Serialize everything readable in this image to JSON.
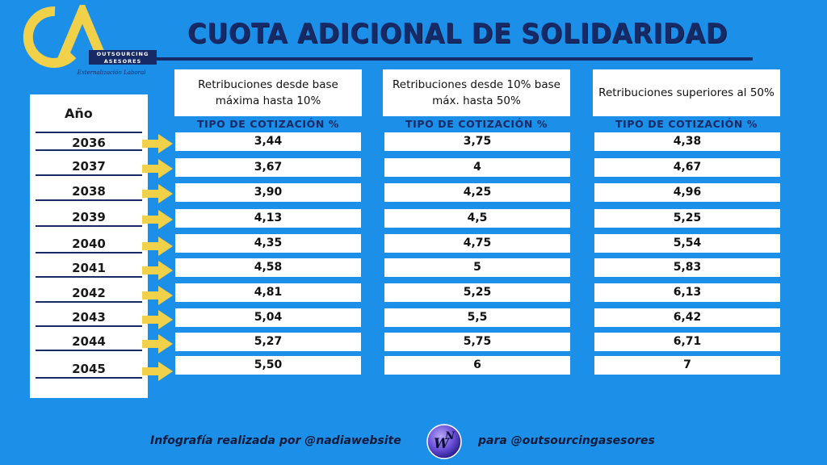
{
  "logo": {
    "band_line1": "OUTSOURCING",
    "band_line2": "ASESORES",
    "subtitle": "Externalización Laboral",
    "colors": {
      "gold": "#f2d14a",
      "navy": "#172a66"
    }
  },
  "title": "CUOTA ADICIONAL DE SOLIDARIDAD",
  "year_header": "Año",
  "years": [
    "2036",
    "2037",
    "2038",
    "2039",
    "2040",
    "2041",
    "2042",
    "2043",
    "2044",
    "2045"
  ],
  "columns": [
    {
      "header": "Retribuciones desde base máxima hasta 10%",
      "subheader": "TIPO DE COTIZACIÓN %",
      "values": [
        "3,44",
        "3,67",
        "3,90",
        "4,13",
        "4,35",
        "4,58",
        "4,81",
        "5,04",
        "5,27",
        "5,50"
      ]
    },
    {
      "header": "Retribuciones desde  10% base máx. hasta 50%",
      "subheader": "TIPO DE COTIZACIÓN %",
      "values": [
        "3,75",
        "4",
        "4,25",
        "4,5",
        "4,75",
        "5",
        "5,25",
        "5,5",
        "5,75",
        "6"
      ]
    },
    {
      "header": "Retribuciones superiores al 50%",
      "subheader": "TIPO DE COTIZACIÓN %",
      "values": [
        "4,38",
        "4,67",
        "4,96",
        "5,25",
        "5,54",
        "5,83",
        "6,13",
        "6,42",
        "6,71",
        "7"
      ]
    }
  ],
  "footer": {
    "left": "Infografía realizada por @nadiawebsite",
    "right": "para @outsourcingasesores",
    "badge_w": "W",
    "badge_n": "N"
  },
  "colors": {
    "background": "#1c90e8",
    "navy": "#172a66",
    "arrow": "#f2d14a"
  }
}
